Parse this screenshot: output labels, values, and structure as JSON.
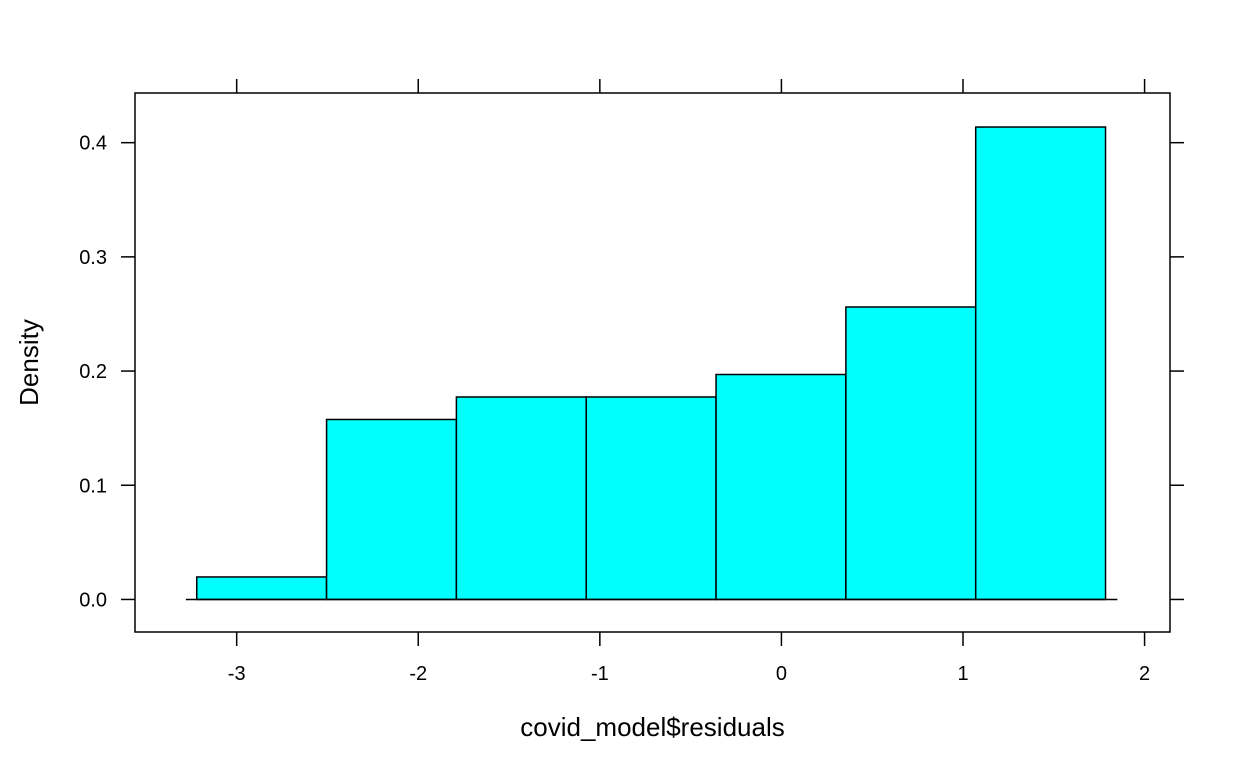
{
  "chart_data": {
    "type": "bar",
    "subtype": "histogram",
    "title": "",
    "xlabel": "covid_model$residuals",
    "ylabel": "Density",
    "xlim": [
      -3.56,
      2.14
    ],
    "ylim": [
      -0.0285,
      0.4435
    ],
    "xticks": [
      -3,
      -2,
      -1,
      0,
      1,
      2
    ],
    "xtick_labels": [
      "-3",
      "-2",
      "-1",
      "0",
      "1",
      "2"
    ],
    "yticks": [
      0.0,
      0.1,
      0.2,
      0.3,
      0.4
    ],
    "ytick_labels": [
      "0.0",
      "0.1",
      "0.2",
      "0.3",
      "0.4"
    ],
    "baseline_range": [
      -3.28,
      1.85
    ],
    "bins": [
      {
        "x0": -3.22,
        "x1": -2.505,
        "density": 0.0197
      },
      {
        "x0": -2.505,
        "x1": -1.79,
        "density": 0.1576
      },
      {
        "x0": -1.79,
        "x1": -1.075,
        "density": 0.1773
      },
      {
        "x0": -1.075,
        "x1": -0.36,
        "density": 0.1773
      },
      {
        "x0": -0.36,
        "x1": 0.355,
        "density": 0.197
      },
      {
        "x0": 0.355,
        "x1": 1.07,
        "density": 0.2561
      },
      {
        "x0": 1.07,
        "x1": 1.785,
        "density": 0.4137
      }
    ],
    "fill_color": "#00ffff",
    "stroke_color": "#000000",
    "grid": false,
    "legend": "none"
  }
}
